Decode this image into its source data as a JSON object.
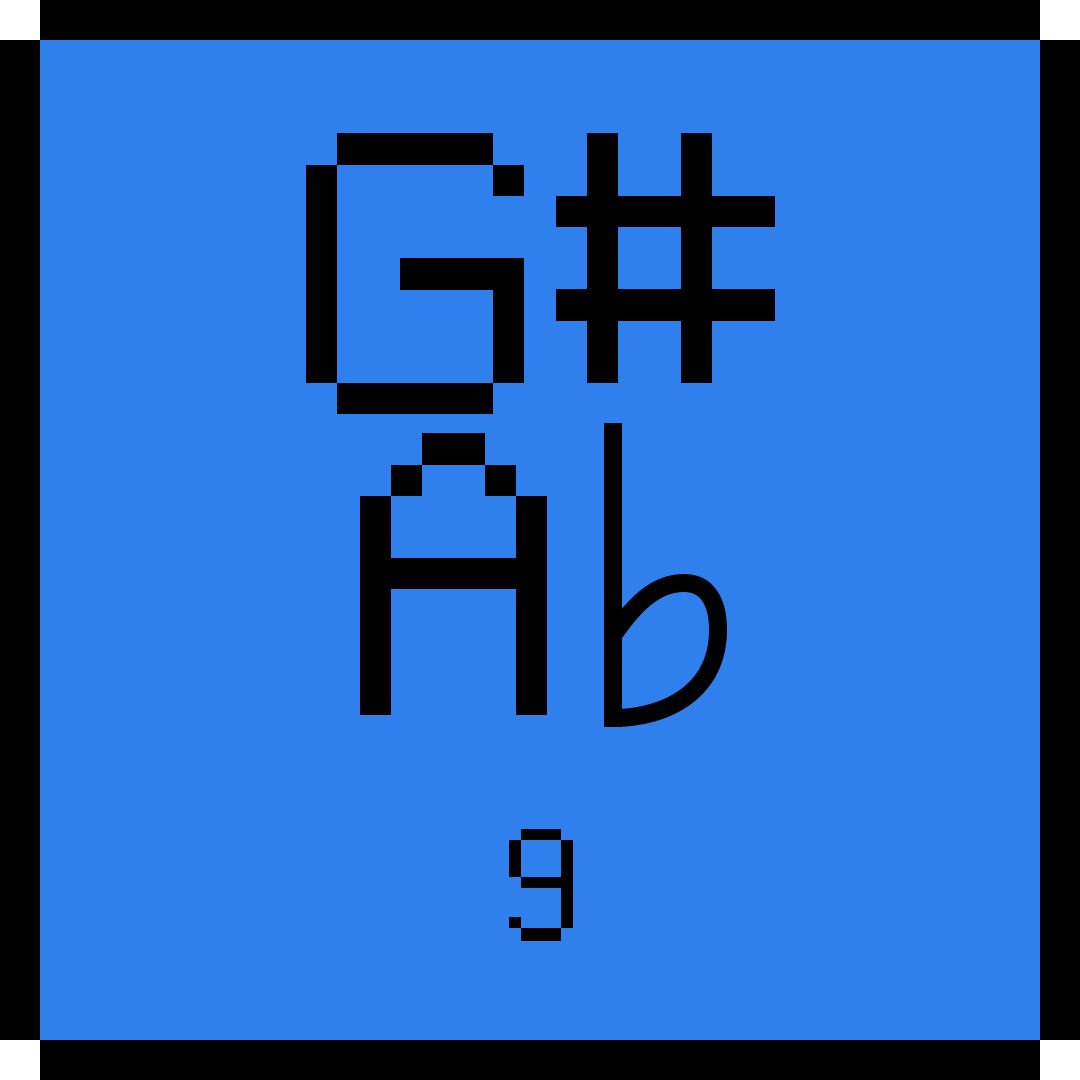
{
  "tile": {
    "sharp_name": "G#",
    "flat_name": "Ab",
    "number": "9"
  },
  "colors": {
    "face": "#2f80ed",
    "ink": "#000000",
    "outside": "#ffffff"
  }
}
